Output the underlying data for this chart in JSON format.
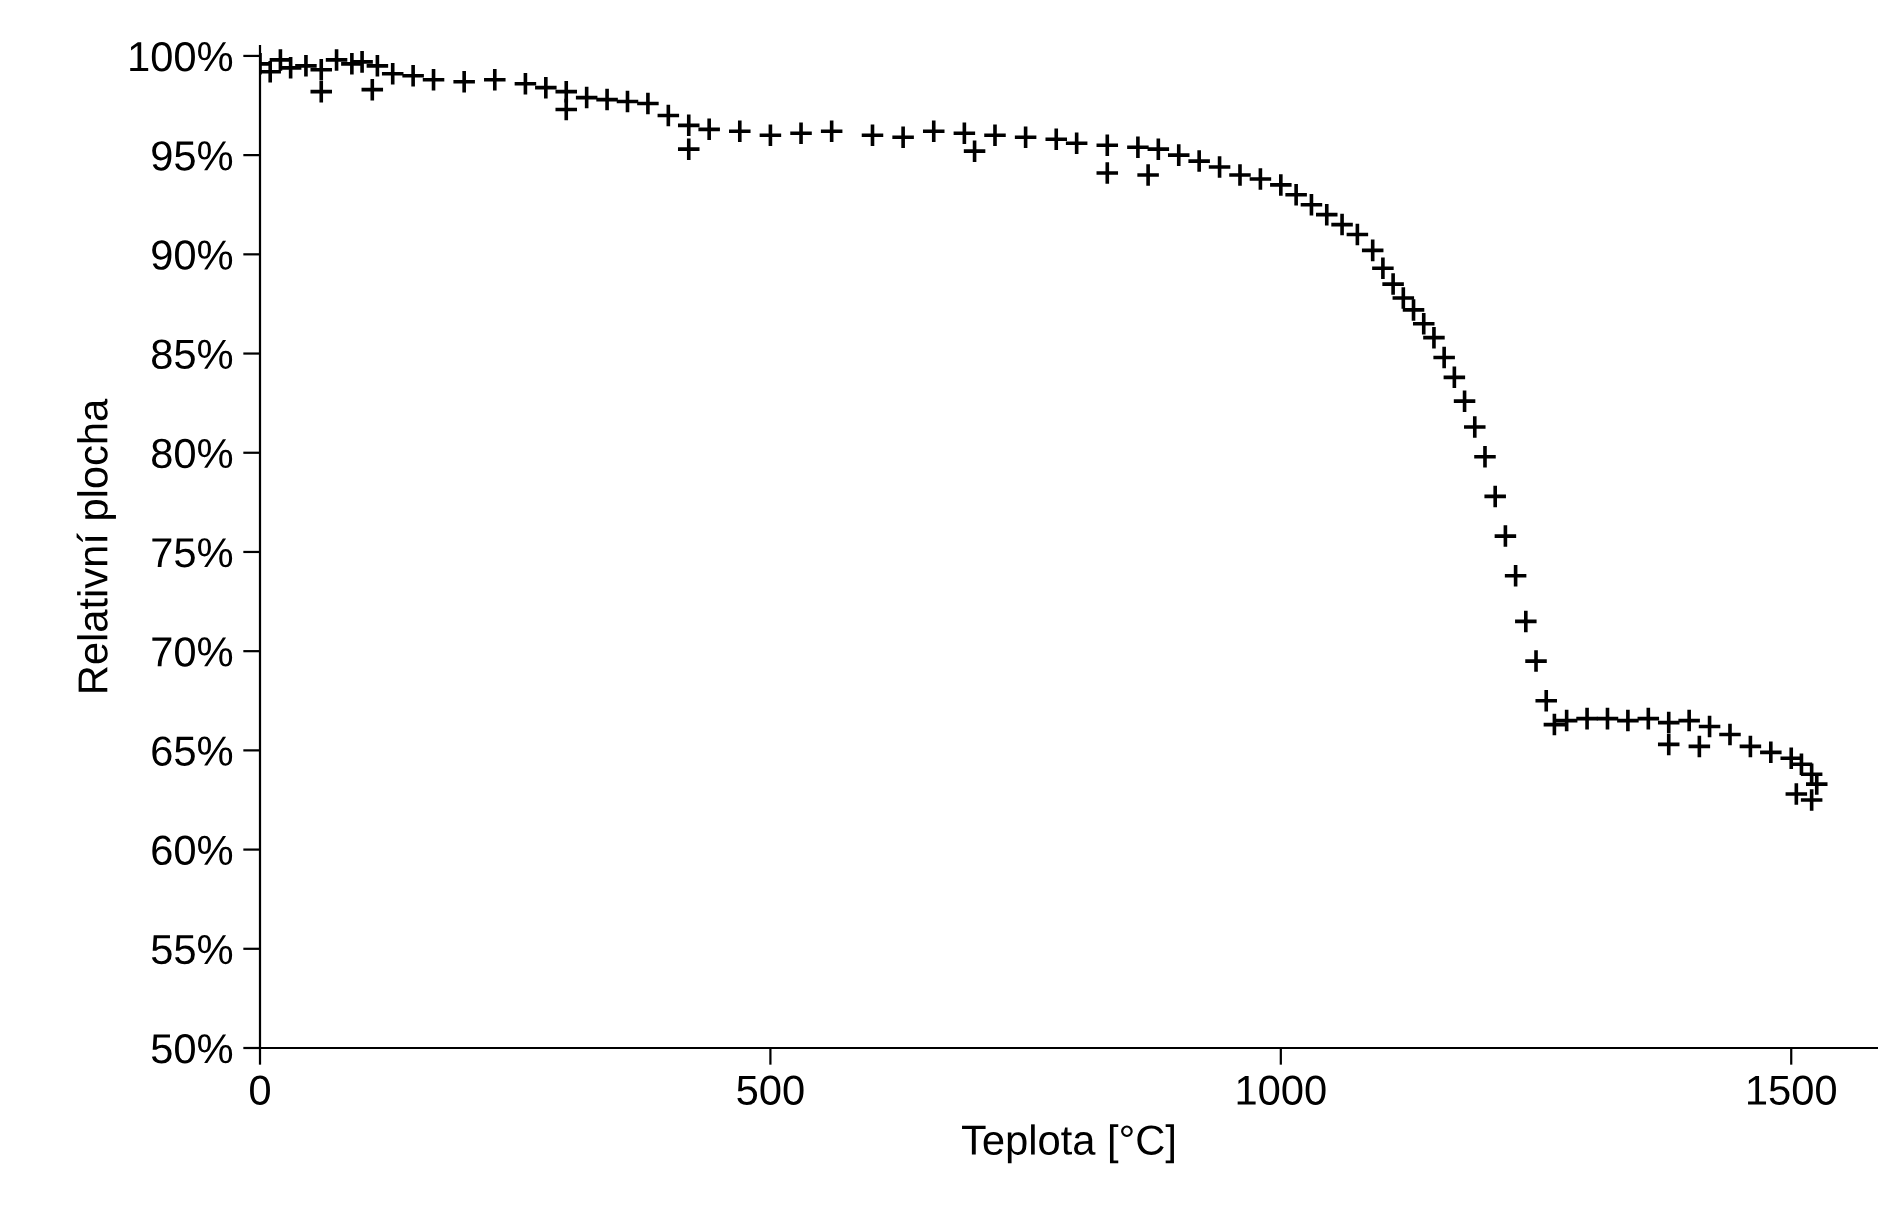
{
  "chart_data": {
    "type": "scatter",
    "xlabel": "Teplota [°C]",
    "ylabel": "Relativní plocha",
    "x": [
      0,
      10,
      20,
      30,
      45,
      60,
      75,
      90,
      100,
      115,
      130,
      150,
      170,
      200,
      230,
      260,
      280,
      300,
      320,
      340,
      360,
      380,
      400,
      420,
      440,
      470,
      500,
      530,
      560,
      600,
      630,
      660,
      690,
      720,
      750,
      780,
      800,
      830,
      860,
      880,
      900,
      920,
      940,
      960,
      980,
      1000,
      1015,
      1030,
      1045,
      1060,
      1075,
      1090,
      1100,
      1110,
      1120,
      1130,
      1140,
      1150,
      1160,
      1170,
      1180,
      1190,
      1200,
      1210,
      1220,
      1230,
      1240,
      1250,
      1260,
      1268,
      1280,
      1300,
      1320,
      1340,
      1360,
      1380,
      1400,
      1420,
      1440,
      1460,
      1480,
      1500,
      1510,
      1520,
      1525,
      60,
      110,
      300,
      420,
      700,
      830,
      870,
      1380,
      1410,
      1505,
      1520
    ],
    "values": [
      99.6,
      99.2,
      99.8,
      99.4,
      99.5,
      99.3,
      99.8,
      99.6,
      99.7,
      99.5,
      99.1,
      99.0,
      98.8,
      98.7,
      98.8,
      98.6,
      98.4,
      98.2,
      97.9,
      97.8,
      97.7,
      97.6,
      97.0,
      96.5,
      96.3,
      96.2,
      96.0,
      96.1,
      96.2,
      96.0,
      95.9,
      96.2,
      96.1,
      96.0,
      95.9,
      95.8,
      95.6,
      95.5,
      95.4,
      95.3,
      95.0,
      94.7,
      94.4,
      94.0,
      93.8,
      93.5,
      93.0,
      92.5,
      92.0,
      91.5,
      91.0,
      90.2,
      89.3,
      88.5,
      87.8,
      87.2,
      86.5,
      85.8,
      84.8,
      83.8,
      82.6,
      81.3,
      79.8,
      77.8,
      75.8,
      73.8,
      71.5,
      69.5,
      67.5,
      66.3,
      66.5,
      66.6,
      66.6,
      66.5,
      66.6,
      66.4,
      66.5,
      66.2,
      65.8,
      65.2,
      64.9,
      64.6,
      64.3,
      63.8,
      63.3,
      98.2,
      98.3,
      97.3,
      95.3,
      95.2,
      94.1,
      94.0,
      65.3,
      65.2,
      62.8,
      62.5
    ],
    "color": "#000000",
    "marker": "cross",
    "xlim": [
      0,
      1585
    ],
    "xticks": [
      0,
      500,
      1000,
      1500
    ],
    "ylim": [
      50,
      100.5
    ],
    "yticks": [
      {
        "value": 50,
        "label": "50%"
      },
      {
        "value": 55,
        "label": "55%"
      },
      {
        "value": 60,
        "label": "60%"
      },
      {
        "value": 65,
        "label": "65%"
      },
      {
        "value": 70,
        "label": "70%"
      },
      {
        "value": 75,
        "label": "75%"
      },
      {
        "value": 80,
        "label": "80%"
      },
      {
        "value": 85,
        "label": "85%"
      },
      {
        "value": 90,
        "label": "90%"
      },
      {
        "value": 95,
        "label": "95%"
      },
      {
        "value": 100,
        "label": "100%"
      }
    ],
    "grid": false
  }
}
